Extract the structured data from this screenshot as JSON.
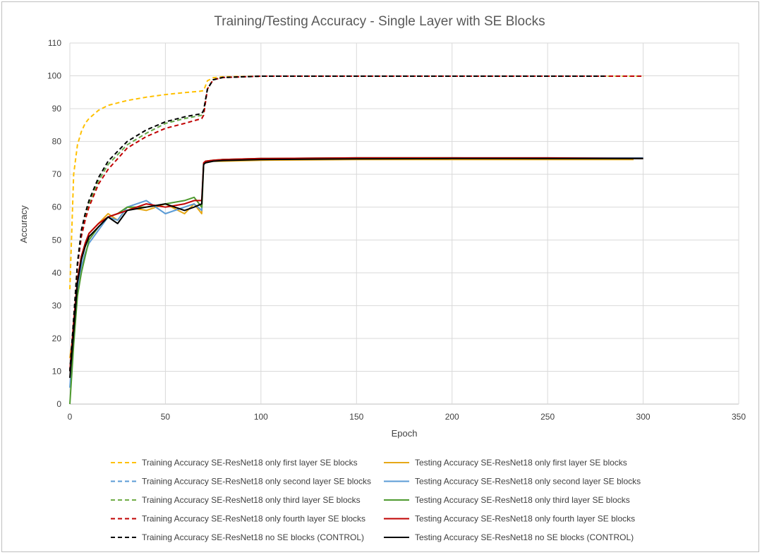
{
  "chart_data": {
    "type": "line",
    "title": "Training/Testing Accuracy - Single Layer with SE Blocks",
    "xlabel": "Epoch",
    "ylabel": "Accuracy",
    "xlim": [
      0,
      350
    ],
    "ylim": [
      0,
      110
    ],
    "xticks": [
      0,
      50,
      100,
      150,
      200,
      250,
      300,
      350
    ],
    "yticks": [
      0,
      10,
      20,
      30,
      40,
      50,
      60,
      70,
      80,
      90,
      100,
      110
    ],
    "grid": true,
    "legend_position": "bottom",
    "series": [
      {
        "name": "Training Accuracy SE-ResNet18 only first layer SE blocks",
        "color": "#FFC000",
        "dash": true,
        "x": [
          0,
          2,
          4,
          6,
          8,
          10,
          15,
          20,
          30,
          40,
          50,
          60,
          68,
          70,
          72,
          75,
          80,
          100,
          150,
          200,
          250,
          300
        ],
        "y": [
          35,
          70,
          79,
          83,
          85.5,
          87,
          89.5,
          91,
          92.5,
          93.5,
          94.3,
          94.9,
          95.3,
          95.5,
          98.5,
          99.4,
          99.7,
          99.9,
          99.9,
          99.9,
          99.9,
          99.9
        ]
      },
      {
        "name": "Testing Accuracy SE-ResNet18 only first layer SE blocks",
        "color": "#E6A817",
        "dash": false,
        "x": [
          0,
          2,
          4,
          6,
          8,
          10,
          15,
          20,
          25,
          30,
          40,
          50,
          60,
          65,
          69,
          70,
          71,
          75,
          80,
          100,
          150,
          200,
          250,
          295
        ],
        "y": [
          14,
          22,
          38,
          45,
          48,
          52,
          55,
          58,
          56,
          60,
          59,
          61,
          58,
          61,
          58,
          73,
          74,
          74,
          74,
          74.3,
          74.5,
          74.5,
          74.5,
          74.5
        ]
      },
      {
        "name": "Training Accuracy SE-ResNet18 only second layer SE blocks",
        "color": "#5B9BD5",
        "dash": true,
        "x": [
          0,
          2,
          4,
          6,
          8,
          10,
          15,
          20,
          30,
          40,
          50,
          60,
          69,
          70,
          72,
          75,
          80,
          100,
          150,
          200,
          250,
          300
        ],
        "y": [
          10,
          25,
          42,
          52,
          57,
          61,
          68,
          73,
          79,
          82.5,
          85.5,
          87,
          88,
          89,
          96,
          98.8,
          99.5,
          99.9,
          99.9,
          99.9,
          99.9,
          99.9
        ]
      },
      {
        "name": "Testing Accuracy SE-ResNet18 only second layer SE blocks",
        "color": "#5B9BD5",
        "dash": false,
        "x": [
          0,
          2,
          4,
          6,
          8,
          10,
          15,
          20,
          25,
          30,
          40,
          50,
          60,
          65,
          69,
          70,
          71,
          75,
          80,
          100,
          150,
          200,
          250,
          300
        ],
        "y": [
          5,
          20,
          35,
          42,
          46,
          49,
          53,
          57,
          56,
          60,
          62,
          58,
          60,
          61,
          59,
          73,
          74,
          74.2,
          74.5,
          74.8,
          75,
          75,
          75,
          75
        ]
      },
      {
        "name": "Training Accuracy SE-ResNet18 only third layer SE blocks",
        "color": "#70AD47",
        "dash": true,
        "x": [
          0,
          2,
          4,
          6,
          8,
          10,
          15,
          20,
          30,
          40,
          50,
          60,
          69,
          70,
          72,
          75,
          80,
          100,
          150,
          200,
          250,
          300
        ],
        "y": [
          10,
          26,
          43,
          52,
          57,
          61,
          68,
          73,
          79,
          82.5,
          85.5,
          87,
          88,
          89,
          96,
          98.8,
          99.5,
          99.9,
          99.9,
          99.9,
          99.9,
          99.9
        ]
      },
      {
        "name": "Testing Accuracy SE-ResNet18 only third layer SE blocks",
        "color": "#4E9A2F",
        "dash": false,
        "x": [
          0,
          2,
          4,
          6,
          8,
          10,
          15,
          20,
          25,
          30,
          40,
          50,
          60,
          65,
          69,
          70,
          71,
          75,
          80,
          100,
          150,
          200,
          250,
          300
        ],
        "y": [
          0,
          18,
          33,
          40,
          45,
          50,
          54,
          57,
          58,
          60,
          60,
          61,
          62,
          63,
          60,
          73,
          74,
          74.3,
          74.5,
          74.8,
          75,
          75,
          74.8,
          74.8
        ]
      },
      {
        "name": "Training Accuracy SE-ResNet18 only fourth layer SE blocks",
        "color": "#C00000",
        "dash": true,
        "x": [
          0,
          2,
          4,
          6,
          8,
          10,
          15,
          20,
          30,
          40,
          50,
          60,
          69,
          70,
          72,
          75,
          80,
          100,
          150,
          200,
          250,
          300
        ],
        "y": [
          10,
          25,
          42,
          51,
          56,
          60,
          67,
          71.5,
          78,
          81.5,
          84,
          85.5,
          87,
          88,
          96,
          98.8,
          99.5,
          99.9,
          99.9,
          99.9,
          99.9,
          99.9
        ]
      },
      {
        "name": "Testing Accuracy SE-ResNet18 only fourth layer SE blocks",
        "color": "#C00000",
        "dash": false,
        "x": [
          0,
          2,
          4,
          6,
          8,
          10,
          15,
          20,
          25,
          30,
          40,
          50,
          60,
          65,
          69,
          70,
          71,
          75,
          80,
          100,
          150,
          200,
          250,
          300
        ],
        "y": [
          10,
          25,
          38,
          45,
          49,
          52,
          55,
          57,
          58,
          59,
          61,
          60,
          61,
          62,
          62,
          73.5,
          74,
          74.3,
          74.5,
          74.8,
          75,
          75,
          75,
          74.8
        ]
      },
      {
        "name": "Training Accuracy SE-ResNet18 no SE blocks (CONTROL)",
        "color": "#000000",
        "dash": true,
        "x": [
          0,
          2,
          4,
          6,
          8,
          10,
          15,
          20,
          30,
          40,
          50,
          60,
          69,
          70,
          72,
          75,
          80,
          100,
          150,
          200,
          250,
          280
        ],
        "y": [
          10,
          26,
          43,
          53,
          58,
          62,
          69,
          74,
          80,
          83.5,
          86,
          87.5,
          88.5,
          89.5,
          96,
          98.8,
          99.5,
          99.9,
          99.9,
          99.9,
          99.9,
          99.9
        ]
      },
      {
        "name": "Testing Accuracy SE-ResNet18 no SE blocks (CONTROL)",
        "color": "#000000",
        "dash": false,
        "x": [
          0,
          2,
          4,
          6,
          8,
          10,
          15,
          20,
          25,
          30,
          40,
          50,
          60,
          65,
          69,
          70,
          71,
          75,
          80,
          100,
          150,
          200,
          250,
          300
        ],
        "y": [
          8,
          22,
          37,
          44,
          48,
          51,
          54,
          57,
          55,
          59,
          60,
          61,
          59,
          60,
          61,
          73,
          73.5,
          74,
          74.2,
          74.5,
          74.7,
          74.8,
          74.8,
          74.8
        ]
      }
    ]
  }
}
